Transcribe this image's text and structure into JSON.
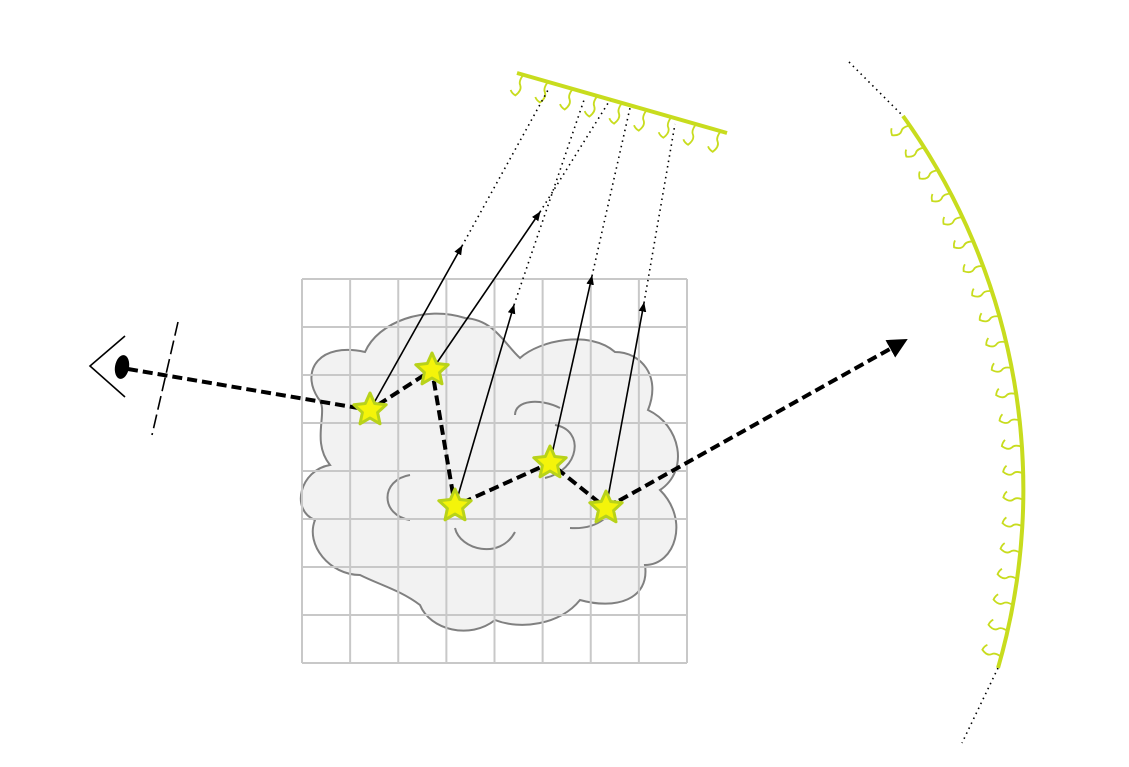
{
  "diagram": {
    "colors": {
      "light_source": "#c8dc1e",
      "cloud_fill": "#f2f2f2",
      "cloud_stroke": "#808080",
      "grid": "#c8c8c8",
      "star_fill": "#f4f40a",
      "star_stroke": "#b8d21a",
      "path": "#000000"
    },
    "grid_cells": {
      "columns": 8,
      "rows": 8
    },
    "scatter_events": 5,
    "shadow_rays": 5
  }
}
